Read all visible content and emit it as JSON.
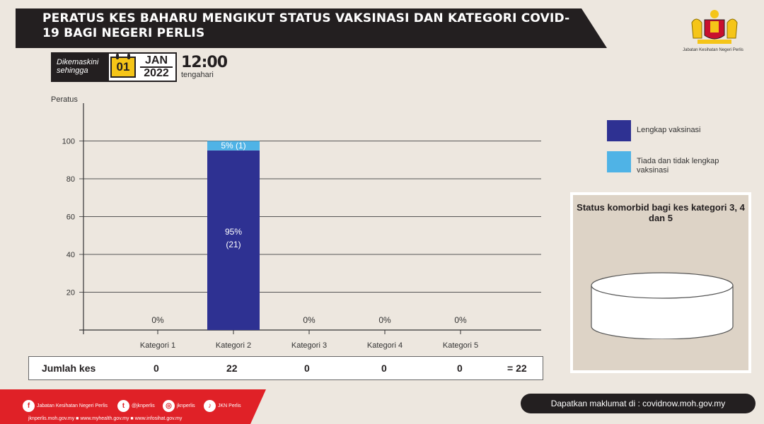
{
  "title": "PERATUS KES BAHARU MENGIKUT STATUS VAKSINASI  DAN KATEGORI COVID-19 BAGI NEGERI PERLIS",
  "update": {
    "label": "Dikemaskini sehingga",
    "day": "01",
    "month": "JAN",
    "year": "2022",
    "time": "12:00",
    "time_period": "tengahari"
  },
  "crest_caption": "Jabatan Kesihatan Negeri Perlis",
  "chart_data": {
    "type": "bar",
    "ylabel": "Peratus",
    "ylim": [
      0,
      120
    ],
    "yticks": [
      20,
      40,
      60,
      80,
      100
    ],
    "grid": true,
    "categories": [
      "Kategori 1",
      "Kategori 2",
      "Kategori 3",
      "Kategori 4",
      "Kategori 5"
    ],
    "series": [
      {
        "name": "Lengkap vaksinasi",
        "color": "#2e3192",
        "values": [
          0,
          95,
          0,
          0,
          0
        ]
      },
      {
        "name": "Tiada dan tidak lengkap vaksinasi",
        "color": "#4fb3e6",
        "values": [
          0,
          5,
          0,
          0,
          0
        ]
      }
    ],
    "data_labels": [
      {
        "category": "Kategori 1",
        "text": "0%"
      },
      {
        "category": "Kategori 2",
        "series": "Tiada dan tidak lengkap vaksinasi",
        "text": "5% (1)"
      },
      {
        "category": "Kategori 2",
        "series": "Lengkap vaksinasi",
        "text": "95%",
        "text2": "(21)"
      },
      {
        "category": "Kategori 3",
        "text": "0%"
      },
      {
        "category": "Kategori 4",
        "text": "0%"
      },
      {
        "category": "Kategori 5",
        "text": "0%"
      }
    ],
    "legend_position": "right"
  },
  "legend": {
    "items": [
      {
        "label": "Lengkap vaksinasi",
        "color": "#2e3192"
      },
      {
        "label": "Tiada dan tidak lengkap vaksinasi",
        "color": "#4fb3e6"
      }
    ]
  },
  "comorbid": {
    "title": "Status komorbid bagi kes kategori 3, 4 dan 5"
  },
  "totals": {
    "label": "Jumlah kes",
    "values": [
      "0",
      "22",
      "0",
      "0",
      "0"
    ],
    "total": "= 22"
  },
  "footer": {
    "socials": [
      {
        "icon": "facebook-icon",
        "text": "Jabatan Kesihatan Negeri Perlis"
      },
      {
        "icon": "twitter-icon",
        "text": "@jknperlis"
      },
      {
        "icon": "instagram-icon",
        "text": "jknperlis"
      },
      {
        "icon": "tiktok-icon",
        "text": "JKN Perlis"
      }
    ],
    "urls": "jknperlis.moh.gov.my ■ www.myhealth.gov.my ■ www.infosihat.gov.my",
    "info": "Dapatkan maklumat di : covidnow.moh.gov.my"
  }
}
